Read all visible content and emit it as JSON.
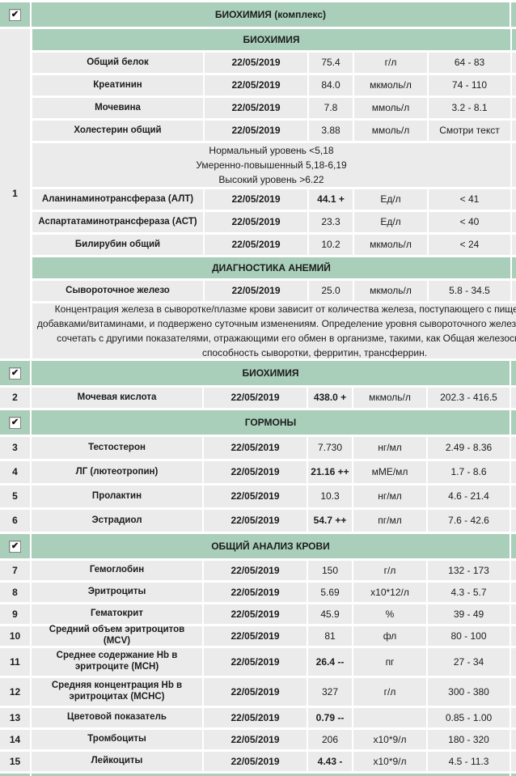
{
  "colors": {
    "section_header_green": "#a9cfbb",
    "row_gray": "#ebebeb",
    "text": "#1c1c1c"
  },
  "icons": {
    "checkbox_checked": "✔"
  },
  "common": {
    "date": "22/05/2019"
  },
  "sections": {
    "bio_complex": {
      "title": "БИОХИМИЯ (комплекс)",
      "group_no": "1",
      "checked": true
    },
    "bio_sub": {
      "title": "БИОХИМИЯ"
    },
    "anemia_sub": {
      "title": "ДИАГНОСТИКА АНЕМИЙ"
    },
    "bio2": {
      "title": "БИОХИМИЯ",
      "checked": true
    },
    "hormones": {
      "title": "ГОРМОНЫ",
      "checked": true
    },
    "cbc": {
      "title": "ОБЩИЙ АНАЛИЗ КРОВИ",
      "checked": true
    }
  },
  "texts": {
    "cholesterol_note": [
      "Нормальный уровень <5,18",
      "Умеренно-повышенный 5,18-6,19",
      "Высокий уровень >6.22"
    ],
    "iron_note": [
      "Концентрация железа в сыворотке/плазме крови зависит от количества железа, поступающего с пищей/пищевыми",
      "добавками/витаминами, и подвержено суточным изменениям. Определение уровня сывороточного железа рекомендуется",
      "сочетать с другими показателями, отражающими его обмен в организме, такими, как Общая железосвязывающая",
      "способность сыворотки, ферритин, трансферрин."
    ]
  },
  "rows": {
    "protein": {
      "name": "Общий белок",
      "value": "75.4",
      "unit": "г/л",
      "range": "64 - 83"
    },
    "creatinine": {
      "name": "Креатинин",
      "value": "84.0",
      "unit": "мкмоль/л",
      "range": "74 - 110"
    },
    "urea": {
      "name": "Мочевина",
      "value": "7.8",
      "unit": "ммоль/л",
      "range": "3.2 - 8.1"
    },
    "cholesterol": {
      "name": "Холестерин общий",
      "value": "3.88",
      "unit": "ммоль/л",
      "range": "Смотри текст"
    },
    "alt": {
      "name": "Аланинаминотрансфераза (АЛТ)",
      "value": "44.1 +",
      "unit": "Ед/л",
      "range": "< 41"
    },
    "ast": {
      "name": "Аспартатаминотрансфераза (АСТ)",
      "value": "23.3",
      "unit": "Ед/л",
      "range": "< 40"
    },
    "bilirubin": {
      "name": "Билирубин общий",
      "value": "10.2",
      "unit": "мкмоль/л",
      "range": "< 24"
    },
    "iron": {
      "name": "Сывороточное железо",
      "value": "25.0",
      "unit": "мкмоль/л",
      "range": "5.8 - 34.5"
    },
    "uric": {
      "no": "2",
      "name": "Мочевая кислота",
      "value": "438.0 +",
      "unit": "мкмоль/л",
      "range": "202.3 - 416.5"
    },
    "testosterone": {
      "no": "3",
      "name": "Тестостерон",
      "value": "7.730",
      "unit": "нг/мл",
      "range": "2.49 - 8.36"
    },
    "lh": {
      "no": "4",
      "name": "ЛГ (лютеотропин)",
      "value": "21.16 ++",
      "unit": "мМЕ/мл",
      "range": "1.7 - 8.6"
    },
    "prolactin": {
      "no": "5",
      "name": "Пролактин",
      "value": "10.3",
      "unit": "нг/мл",
      "range": "4.6 - 21.4"
    },
    "estradiol": {
      "no": "6",
      "name": "Эстрадиол",
      "value": "54.7 ++",
      "unit": "пг/мл",
      "range": "7.6 - 42.6"
    },
    "hemoglobin": {
      "no": "7",
      "name": "Гемоглобин",
      "value": "150",
      "unit": "г/л",
      "range": "132 - 173"
    },
    "erythrocytes": {
      "no": "8",
      "name": "Эритроциты",
      "value": "5.69",
      "unit": "x10*12/л",
      "range": "4.3 - 5.7"
    },
    "hematocrit": {
      "no": "9",
      "name": "Гематокрит",
      "value": "45.9",
      "unit": "%",
      "range": "39 - 49"
    },
    "mcv": {
      "no": "10",
      "name": "Средний объем эритроцитов (MCV)",
      "value": "81",
      "unit": "фл",
      "range": "80 - 100"
    },
    "mch": {
      "no": "11",
      "name": "Среднее содержание Hb в эритроците (MCH)",
      "value": "26.4 --",
      "unit": "пг",
      "range": "27 - 34"
    },
    "mchc": {
      "no": "12",
      "name": "Средняя концентрация Hb в эритроцитах (MCHC)",
      "value": "327",
      "unit": "г/л",
      "range": "300 - 380"
    },
    "color_index": {
      "no": "13",
      "name": "Цветовой показатель",
      "value": "0.79 --",
      "unit": "",
      "range": "0.85 - 1.00"
    },
    "platelets": {
      "no": "14",
      "name": "Тромбоциты",
      "value": "206",
      "unit": "x10*9/л",
      "range": "180 - 320"
    },
    "leukocytes": {
      "no": "15",
      "name": "Лейкоциты",
      "value": "4.43 -",
      "unit": "x10*9/л",
      "range": "4.5 - 11.3"
    }
  }
}
